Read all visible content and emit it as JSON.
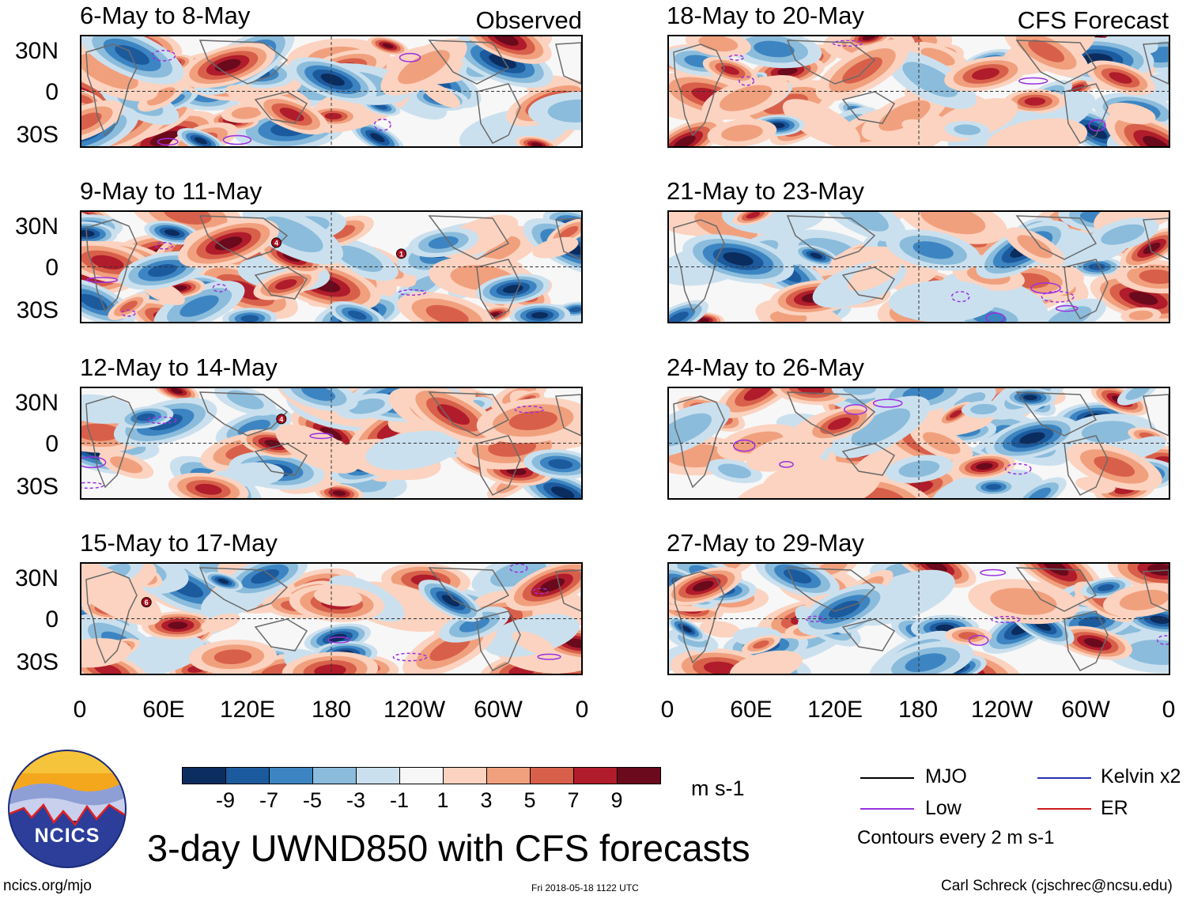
{
  "panels": {
    "left": [
      {
        "title": "6-May to 8-May",
        "tag": "Observed"
      },
      {
        "title": "9-May to 11-May",
        "tag": ""
      },
      {
        "title": "12-May to 14-May",
        "tag": ""
      },
      {
        "title": "15-May to 17-May",
        "tag": ""
      }
    ],
    "right": [
      {
        "title": "18-May to 20-May",
        "tag": "CFS Forecast"
      },
      {
        "title": "21-May to 23-May",
        "tag": ""
      },
      {
        "title": "24-May to 26-May",
        "tag": ""
      },
      {
        "title": "27-May to 29-May",
        "tag": ""
      }
    ]
  },
  "axes": {
    "lat_labels": [
      "30N",
      "0",
      "30S"
    ],
    "lon_labels": [
      "0",
      "60E",
      "120E",
      "180",
      "120W",
      "60W",
      "0"
    ]
  },
  "colorbar": {
    "unit": "m s-1",
    "labels": [
      "-9",
      "-7",
      "-5",
      "-3",
      "-1",
      "1",
      "3",
      "5",
      "7",
      "9"
    ],
    "colors": [
      "#0b2c5e",
      "#1c5a9e",
      "#3d85c2",
      "#8bbcdc",
      "#cbe0ee",
      "#f7f7f7",
      "#fbd3c0",
      "#f1a07e",
      "#d8604a",
      "#b01c2b",
      "#6a0a1c"
    ]
  },
  "legend": {
    "mjo": "MJO",
    "low": "Low",
    "kelvin": "Kelvin x2",
    "er": "ER",
    "note": "Contours every 2 m s-1",
    "colors": {
      "mjo": "#000000",
      "low": "#9b30e0",
      "kelvin": "#2b2fb0",
      "er": "#cc1a1a"
    }
  },
  "title": "3-day UWND850 with CFS forecasts",
  "logo": {
    "text": "NCICS"
  },
  "footer": {
    "left": "ncics.org/mjo",
    "center": "Fri 2018-05-18 1122 UTC",
    "right": "Carl Schreck (cjschrec@ncsu.edu)"
  },
  "storm_markers": [
    {
      "panel": "9-May to 11-May",
      "label": "4"
    },
    {
      "panel": "9-May to 11-May",
      "label": "1"
    },
    {
      "panel": "12-May to 14-May",
      "label": "4"
    },
    {
      "panel": "15-May to 17-May",
      "label": "6"
    }
  ]
}
